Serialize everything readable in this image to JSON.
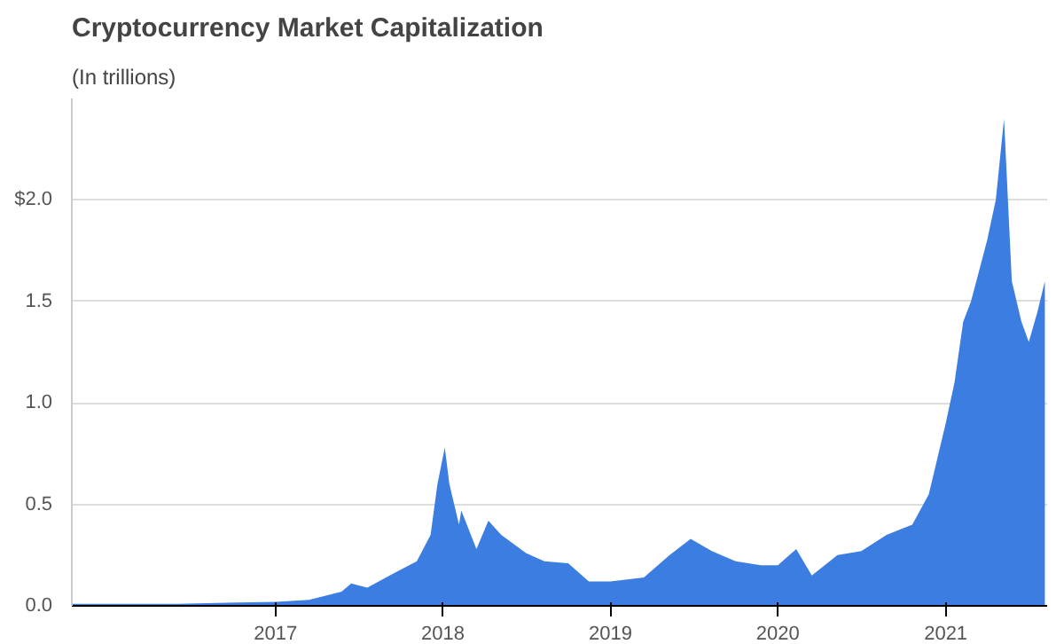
{
  "chart_data": {
    "type": "area",
    "title": "Cryptocurrency Market Capitalization",
    "subtitle": "(In trillions)",
    "x": [
      "2015-10-15",
      "2016-06-01",
      "2017-01-01",
      "2017-03-15",
      "2017-05-25",
      "2017-06-15",
      "2017-07-20",
      "2017-09-15",
      "2017-11-05",
      "2017-12-05",
      "2017-12-20",
      "2018-01-05",
      "2018-01-15",
      "2018-02-05",
      "2018-02-10",
      "2018-03-15",
      "2018-04-10",
      "2018-05-08",
      "2018-07-01",
      "2018-08-10",
      "2018-10-01",
      "2018-11-15",
      "2019-01-01",
      "2019-03-15",
      "2019-05-10",
      "2019-06-25",
      "2019-08-10",
      "2019-10-01",
      "2019-11-25",
      "2020-01-01",
      "2020-02-10",
      "2020-03-15",
      "2020-05-10",
      "2020-07-01",
      "2020-08-25",
      "2020-10-20",
      "2020-11-25",
      "2021-01-01",
      "2021-01-20",
      "2021-02-08",
      "2021-02-25",
      "2021-04-01",
      "2021-04-20",
      "2021-05-08",
      "2021-05-25",
      "2021-06-15",
      "2021-07-01",
      "2021-07-20",
      "2021-08-05"
    ],
    "series": [
      {
        "color": "#3b7de0",
        "values": [
          0.01,
          0.01,
          0.02,
          0.03,
          0.07,
          0.11,
          0.09,
          0.16,
          0.22,
          0.35,
          0.6,
          0.78,
          0.6,
          0.4,
          0.47,
          0.28,
          0.42,
          0.35,
          0.26,
          0.22,
          0.21,
          0.12,
          0.12,
          0.14,
          0.25,
          0.33,
          0.27,
          0.22,
          0.2,
          0.2,
          0.28,
          0.15,
          0.25,
          0.27,
          0.35,
          0.4,
          0.55,
          0.9,
          1.1,
          1.4,
          1.5,
          1.8,
          2.0,
          2.4,
          1.6,
          1.4,
          1.3,
          1.45,
          1.6
        ]
      }
    ],
    "xlim": [
      "2015-10-15",
      "2021-08-10"
    ],
    "ylim": [
      0,
      2.5
    ],
    "xticks": [
      {
        "value": "2017-01-01",
        "label": "2017"
      },
      {
        "value": "2018-01-01",
        "label": "2018"
      },
      {
        "value": "2019-01-01",
        "label": "2019"
      },
      {
        "value": "2020-01-01",
        "label": "2020"
      },
      {
        "value": "2021-01-01",
        "label": "2021"
      }
    ],
    "yticks": [
      {
        "value": 0,
        "label": "0.0"
      },
      {
        "value": 0.5,
        "label": "0.5"
      },
      {
        "value": 1,
        "label": "1.0"
      },
      {
        "value": 1.5,
        "label": "1.5"
      },
      {
        "value": 2,
        "label": "$2.0"
      }
    ],
    "grid": "y"
  }
}
